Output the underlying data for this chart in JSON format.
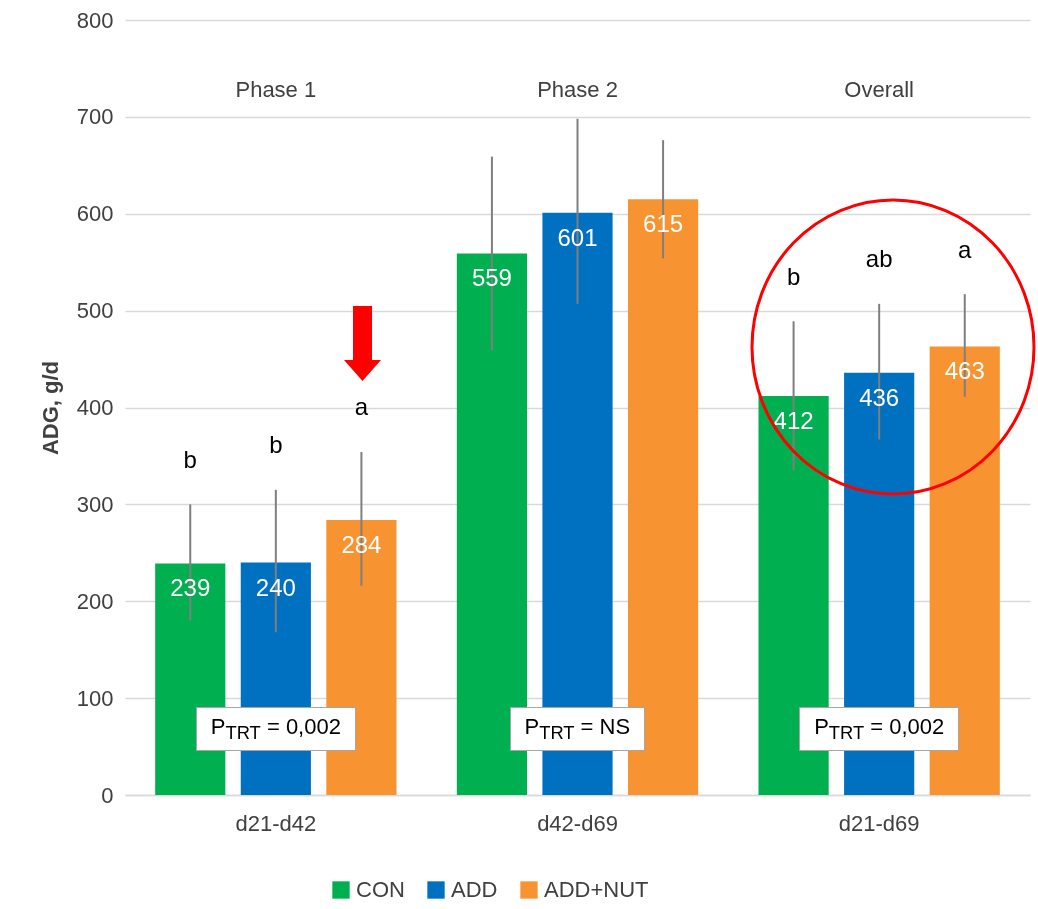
{
  "chart_data": {
    "type": "bar",
    "ylabel": "ADG, g/d",
    "categories": [
      "d21-d42",
      "d42-d69",
      "d21-d69"
    ],
    "series": [
      {
        "name": "CON",
        "color": "#00b050",
        "values": [
          239,
          559,
          412
        ],
        "errors": [
          [
            180,
            300
          ],
          [
            459,
            659
          ],
          [
            335,
            489
          ]
        ]
      },
      {
        "name": "ADD",
        "color": "#0070c0",
        "values": [
          240,
          601,
          436
        ],
        "errors": [
          [
            168,
            315
          ],
          [
            507,
            698
          ],
          [
            367,
            507
          ]
        ]
      },
      {
        "name": "ADD+NUT",
        "color": "#f79431",
        "values": [
          284,
          615,
          463
        ],
        "errors": [
          [
            216,
            354
          ],
          [
            554,
            676
          ],
          [
            411,
            517
          ]
        ]
      }
    ],
    "ylim": [
      0,
      800
    ],
    "yticks": [
      0,
      100,
      200,
      300,
      400,
      500,
      600,
      700,
      800
    ],
    "grid": "y",
    "legend": "bottom",
    "data_labels": true,
    "annotations": [
      "Phase 1",
      "Phase 2",
      "Overall",
      "b",
      "b",
      "a",
      "b",
      "ab",
      "a",
      "P$_{TRT}$ = 0,002",
      "P$_{TRT}$ = NS",
      "P$_{TRT}$ = 0,002"
    ]
  }
}
